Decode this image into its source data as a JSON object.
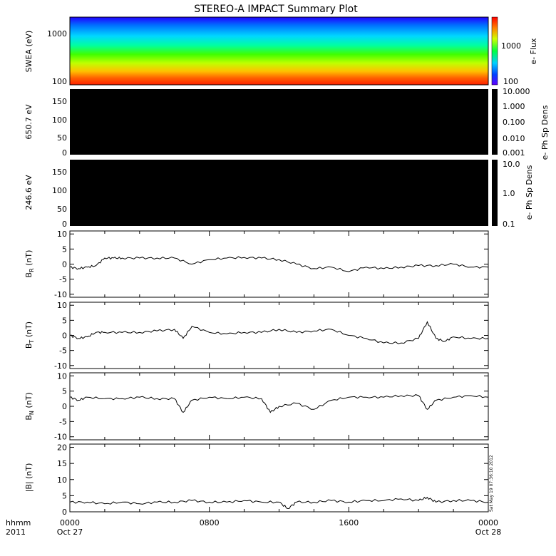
{
  "chart_data": {
    "type": "line",
    "title": "STEREO-A IMPACT Summary Plot",
    "x_axis": {
      "unit_label": "hhmm",
      "year": "2011",
      "tick_labels": [
        "0000",
        "0800",
        "1600",
        "0000"
      ],
      "tick_dates": [
        "Oct 27",
        "",
        "",
        "Oct 28"
      ],
      "range_hours": [
        0,
        24
      ]
    },
    "side_stamp": "Sat May 19 07:36:10 2012",
    "panels": [
      {
        "id": "swea",
        "type": "heatmap",
        "ylabel": "SWEA (eV)",
        "ylim": [
          100,
          2000
        ],
        "y_ticks": [
          "1000",
          "100"
        ],
        "colorbar_label": "e- Flux",
        "colorbar_ticks": [
          "1000",
          "100"
        ]
      },
      {
        "id": "pad650",
        "type": "heatmap",
        "ylabel": "650.7 eV",
        "ylim": [
          0,
          180
        ],
        "y_ticks": [
          "150",
          "100",
          "50",
          "0"
        ],
        "colorbar_label": "e- Ph Sp Dens",
        "colorbar_ticks": [
          "10.000",
          "1.000",
          "0.100",
          "0.010",
          "0.001"
        ],
        "note": "all values black (no data)"
      },
      {
        "id": "pad246",
        "type": "heatmap",
        "ylabel": "246.6 eV",
        "ylim": [
          0,
          180
        ],
        "y_ticks": [
          "150",
          "100",
          "50",
          "0"
        ],
        "colorbar_label": "e- Ph Sp Dens",
        "colorbar_ticks": [
          "10.0",
          "1.0",
          "0.1"
        ],
        "note": "all values black (no data)"
      },
      {
        "id": "br",
        "type": "line",
        "ylabel_main": "B",
        "ylabel_sub": "R",
        "ylabel_unit": " (nT)",
        "ylim": [
          -11,
          11
        ],
        "y_tick_values": [
          10,
          5,
          0,
          -5,
          -10
        ],
        "series": {
          "x": [
            0,
            0.5,
            1,
            1.5,
            2,
            2.5,
            3,
            4,
            5,
            6,
            7,
            8,
            9,
            10,
            11,
            12,
            13,
            14,
            15,
            16,
            17,
            18,
            19,
            20,
            21,
            22,
            23,
            24
          ],
          "y": [
            -1,
            -1.5,
            -1,
            -0.5,
            2,
            2,
            2,
            2,
            2,
            2,
            0,
            1.5,
            2,
            2.2,
            2,
            1.5,
            0,
            -1.5,
            -1,
            -2.5,
            -1,
            -1.5,
            -1,
            -0.5,
            -0.5,
            0,
            -1,
            -1
          ]
        }
      },
      {
        "id": "bt",
        "type": "line",
        "ylabel_main": "B",
        "ylabel_sub": "T",
        "ylabel_unit": " (nT)",
        "ylim": [
          -11,
          11
        ],
        "y_tick_values": [
          10,
          5,
          0,
          -5,
          -10
        ],
        "series": {
          "x": [
            0,
            0.5,
            1,
            1.5,
            2,
            3,
            4,
            5,
            6,
            6.5,
            7,
            8,
            9,
            10,
            11,
            12,
            13,
            14,
            15,
            16,
            17,
            18,
            19,
            20,
            20.5,
            21,
            21.5,
            22,
            23,
            24
          ],
          "y": [
            0,
            -1,
            -0.5,
            1,
            1,
            1,
            1,
            1.5,
            2,
            -1,
            3,
            1,
            0.5,
            1,
            1,
            2,
            1,
            1.5,
            2,
            0,
            -1,
            -2.5,
            -2.5,
            -1,
            4.5,
            -1,
            -2,
            -0.5,
            -1,
            -1
          ]
        }
      },
      {
        "id": "bn",
        "type": "line",
        "ylabel_main": "B",
        "ylabel_sub": "N",
        "ylabel_unit": " (nT)",
        "ylim": [
          -11,
          11
        ],
        "y_tick_values": [
          10,
          5,
          0,
          -5,
          -10
        ],
        "series": {
          "x": [
            0,
            0.5,
            1,
            2,
            3,
            4,
            5,
            6,
            6.5,
            7,
            8,
            9,
            10,
            11,
            11.5,
            12,
            13,
            14,
            15,
            16,
            17,
            18,
            19,
            20,
            20.5,
            21,
            22,
            23,
            24
          ],
          "y": [
            3,
            2,
            3,
            2.5,
            2.5,
            3,
            2.5,
            2.5,
            -2,
            2,
            3,
            2.5,
            3,
            2.5,
            -2,
            0,
            1,
            -1,
            2,
            3,
            3,
            3,
            3.5,
            3.5,
            -1,
            2,
            3,
            3.5,
            3
          ]
        }
      },
      {
        "id": "bmag",
        "type": "line",
        "ylabel_main": "|B| (nT)",
        "ylim": [
          0,
          21
        ],
        "y_tick_values": [
          20,
          15,
          10,
          5,
          0
        ],
        "series": {
          "x": [
            0,
            1,
            2,
            3,
            4,
            5,
            6,
            7,
            8,
            9,
            10,
            11,
            12,
            12.5,
            13,
            14,
            15,
            16,
            17,
            18,
            19,
            20,
            20.5,
            21,
            22,
            23,
            24
          ],
          "y": [
            3,
            3,
            2.5,
            3,
            2.5,
            3,
            3,
            3.5,
            3,
            3,
            3.5,
            3,
            3,
            1,
            3,
            3,
            3.5,
            3,
            3.5,
            3.5,
            4,
            3.5,
            4.5,
            3,
            3.5,
            3.5,
            3
          ]
        }
      }
    ]
  }
}
